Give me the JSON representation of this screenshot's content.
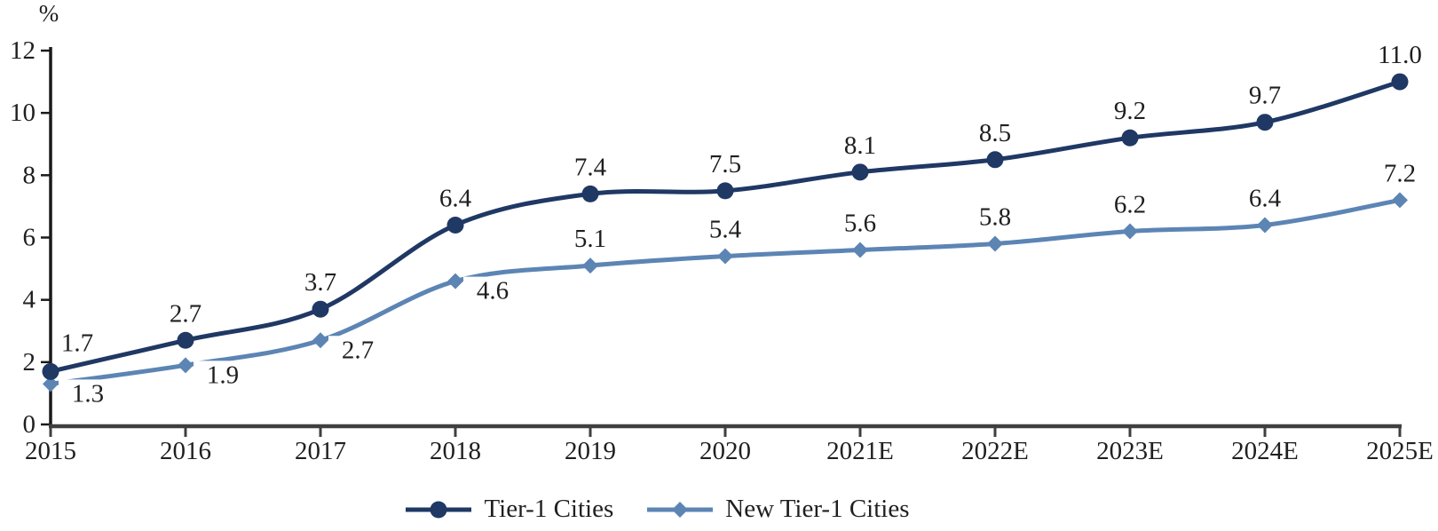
{
  "chart_data": {
    "type": "line",
    "title": "",
    "unit_label": "%",
    "categories": [
      "2015",
      "2016",
      "2017",
      "2018",
      "2019",
      "2020",
      "2021E",
      "2022E",
      "2023E",
      "2024E",
      "2025E"
    ],
    "yticks": [
      0,
      2,
      4,
      6,
      8,
      10,
      12
    ],
    "ylim": [
      0,
      12
    ],
    "grid": false,
    "legend_position": "bottom",
    "axis_color": "#3f3f3f",
    "yaxis_color": "#1a1a1a",
    "text_color": "#1f1f1f",
    "background": "#ffffff",
    "series": [
      {
        "name": "Tier-1 Cities",
        "marker": "circle",
        "color": "#1f3864",
        "values": [
          1.7,
          2.7,
          3.7,
          6.4,
          7.4,
          7.5,
          8.1,
          8.5,
          9.2,
          9.7,
          11.0
        ],
        "labels": [
          "1.7",
          "2.7",
          "3.7",
          "6.4",
          "7.4",
          "7.5",
          "8.1",
          "8.5",
          "9.2",
          "9.7",
          "11.0"
        ],
        "label_pos": [
          "above-right",
          "above",
          "above",
          "above",
          "above",
          "above",
          "above",
          "above",
          "above",
          "above",
          "above"
        ]
      },
      {
        "name": "New Tier-1 Cities",
        "marker": "diamond",
        "color": "#5c85b4",
        "values": [
          1.3,
          1.9,
          2.7,
          4.6,
          5.1,
          5.4,
          5.6,
          5.8,
          6.2,
          6.4,
          7.2
        ],
        "labels": [
          "1.3",
          "1.9",
          "2.7",
          "4.6",
          "5.1",
          "5.4",
          "5.6",
          "5.8",
          "6.2",
          "6.4",
          "7.2"
        ],
        "label_pos": [
          "right",
          "right",
          "right",
          "right",
          "above",
          "above",
          "above",
          "above",
          "above",
          "above",
          "above"
        ]
      }
    ]
  }
}
